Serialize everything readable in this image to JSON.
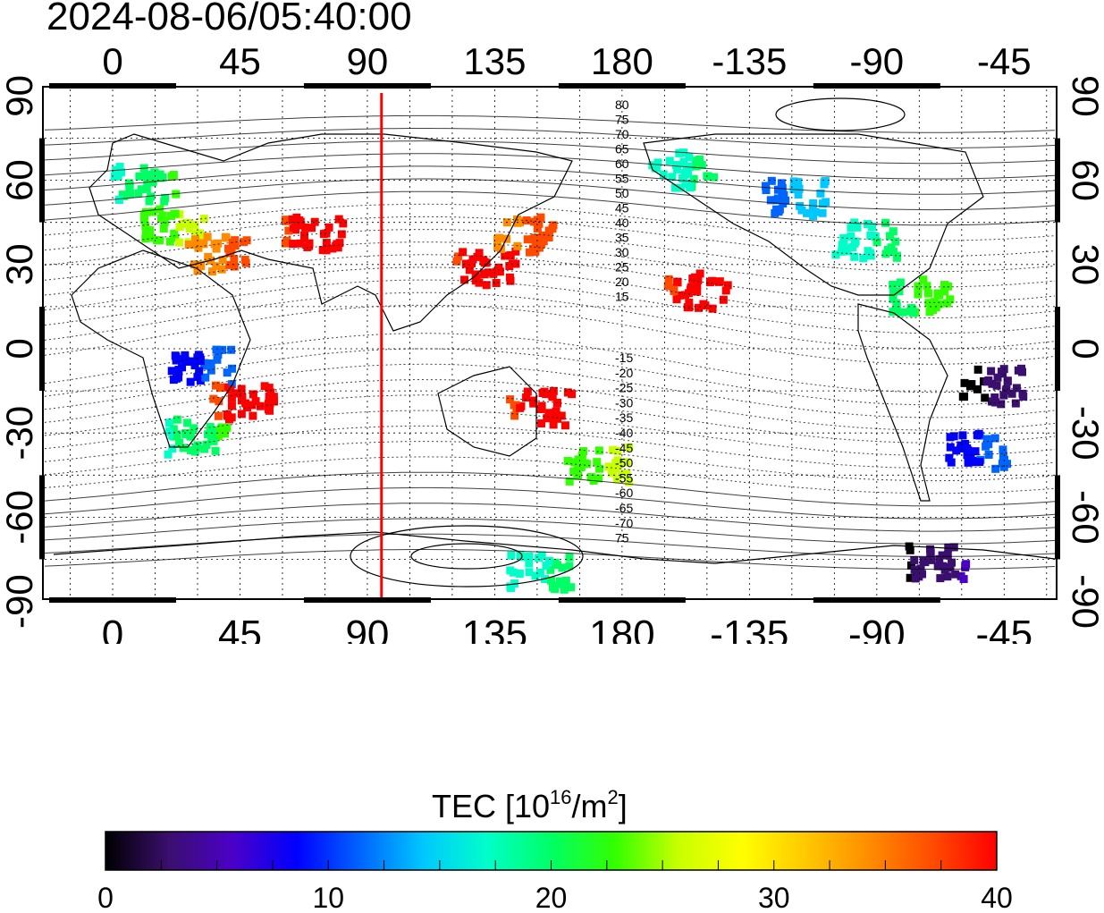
{
  "timestamp": "2024-08-06/05:40:00",
  "map": {
    "lon_ticks": [
      "0",
      "45",
      "90",
      "135",
      "180",
      "-135",
      "-90",
      "-45"
    ],
    "lat_ticks": [
      "90",
      "60",
      "30",
      "0",
      "-30",
      "-60",
      "-90"
    ],
    "marker_line_longitude": 95,
    "marker_line_color": "#ff0000",
    "north_contour_labels": [
      "80",
      "75",
      "70",
      "65",
      "60",
      "55",
      "50",
      "45",
      "40",
      "35",
      "30",
      "25",
      "20",
      "15"
    ],
    "south_contour_labels": [
      "-15",
      "-20",
      "-25",
      "-30",
      "-35",
      "-40",
      "-45",
      "-50",
      "-55",
      "-60",
      "-65",
      "-70",
      "75"
    ]
  },
  "colorbar": {
    "title_prefix": "TEC  [10",
    "title_exp": "16",
    "title_mid": "/m",
    "title_exp2": "2",
    "title_suffix": "]",
    "tick_labels": [
      "0",
      "10",
      "20",
      "30",
      "40"
    ],
    "min": 0,
    "max": 40,
    "colors": [
      "#000000",
      "#3a0f6e",
      "#4b00c8",
      "#0000ff",
      "#0064ff",
      "#00c8ff",
      "#00ffc8",
      "#00ff64",
      "#32ff00",
      "#c8ff00",
      "#ffff00",
      "#ffc800",
      "#ff8c00",
      "#ff4b00",
      "#ff0000"
    ]
  },
  "tec_patches": [
    {
      "lon": 10,
      "lat": 60,
      "tec": 20
    },
    {
      "lon": 20,
      "lat": 45,
      "tec": 24
    },
    {
      "lon": 35,
      "lat": 35,
      "tec": 35
    },
    {
      "lon": 70,
      "lat": 42,
      "tec": 40
    },
    {
      "lon": 130,
      "lat": 30,
      "tec": 40
    },
    {
      "lon": 145,
      "lat": 42,
      "tec": 36
    },
    {
      "lon": 28,
      "lat": -30,
      "tec": 20
    },
    {
      "lon": 30,
      "lat": -5,
      "tec": 10
    },
    {
      "lon": 45,
      "lat": -18,
      "tec": 40
    },
    {
      "lon": 170,
      "lat": -40,
      "tec": 24
    },
    {
      "lon": 200,
      "lat": 65,
      "tec": 18
    },
    {
      "lon": 240,
      "lat": 55,
      "tec": 13
    },
    {
      "lon": 265,
      "lat": 40,
      "tec": 18
    },
    {
      "lon": 285,
      "lat": 20,
      "tec": 22
    },
    {
      "lon": 310,
      "lat": -12,
      "tec": 2
    },
    {
      "lon": 305,
      "lat": -35,
      "tec": 10
    },
    {
      "lon": 290,
      "lat": -75,
      "tec": 3
    },
    {
      "lon": 150,
      "lat": -78,
      "tec": 18
    },
    {
      "lon": 205,
      "lat": 22,
      "tec": 40
    },
    {
      "lon": 150,
      "lat": -20,
      "tec": 40
    }
  ]
}
